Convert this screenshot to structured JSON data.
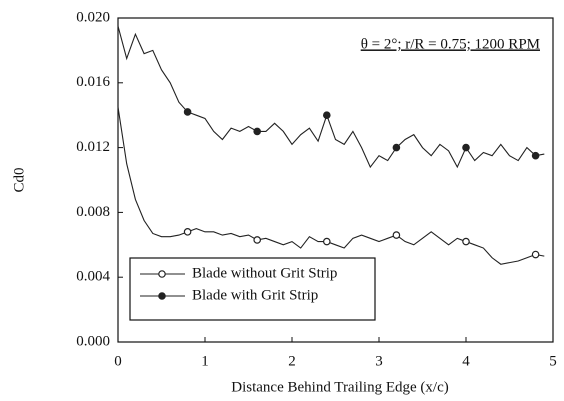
{
  "chart_data": {
    "type": "line",
    "xlabel": "Distance Behind Trailing Edge (x/c)",
    "ylabel": "Cd0",
    "annotation": "θ = 2°; r/R = 0.75; 1200 RPM",
    "xlim": [
      0,
      5
    ],
    "xticks": [
      0,
      1,
      2,
      3,
      4,
      5
    ],
    "ylim": [
      0,
      0.02
    ],
    "yticks": [
      {
        "value": 0,
        "label": "0.000"
      },
      0.004,
      0.008,
      0.012,
      0.016,
      {
        "value": 0.02,
        "label": "0.020"
      }
    ],
    "grid": false,
    "legend": "lower left",
    "x": [
      0,
      0.1,
      0.2,
      0.3,
      0.4,
      0.5,
      0.6,
      0.7,
      0.8,
      0.9,
      1.0,
      1.1,
      1.2,
      1.3,
      1.4,
      1.5,
      1.6,
      1.7,
      1.8,
      1.9,
      2.0,
      2.1,
      2.2,
      2.3,
      2.4,
      2.5,
      2.6,
      2.7,
      2.8,
      2.9,
      3.0,
      3.1,
      3.2,
      3.3,
      3.4,
      3.5,
      3.6,
      3.7,
      3.8,
      3.9,
      4.0,
      4.1,
      4.2,
      4.3,
      4.4,
      4.5,
      4.6,
      4.7,
      4.8,
      4.9
    ],
    "series": [
      {
        "name": "Blade without Grit Strip",
        "color": "#222222",
        "marker": "open-circle",
        "values": [
          0.0145,
          0.011,
          0.0088,
          0.0075,
          0.0067,
          0.0065,
          0.0065,
          0.0066,
          0.0068,
          0.007,
          0.0068,
          0.0068,
          0.0066,
          0.0067,
          0.0065,
          0.0066,
          0.0063,
          0.0064,
          0.0062,
          0.006,
          0.0062,
          0.0058,
          0.0065,
          0.0062,
          0.0062,
          0.006,
          0.0058,
          0.0064,
          0.0066,
          0.0064,
          0.0062,
          0.0064,
          0.0066,
          0.0062,
          0.006,
          0.0064,
          0.0068,
          0.0064,
          0.006,
          0.0064,
          0.0062,
          0.006,
          0.0058,
          0.0052,
          0.0048,
          0.0049,
          0.005,
          0.0052,
          0.0054,
          0.0053
        ]
      },
      {
        "name": "Blade with Grit Strip",
        "color": "#222222",
        "marker": "filled-circle",
        "values": [
          0.0195,
          0.0175,
          0.019,
          0.0178,
          0.018,
          0.0168,
          0.016,
          0.0148,
          0.0142,
          0.014,
          0.0138,
          0.013,
          0.0125,
          0.0132,
          0.013,
          0.0133,
          0.013,
          0.013,
          0.0135,
          0.013,
          0.0122,
          0.0128,
          0.0132,
          0.0124,
          0.014,
          0.0125,
          0.0122,
          0.013,
          0.012,
          0.0108,
          0.0115,
          0.0112,
          0.012,
          0.0125,
          0.0128,
          0.012,
          0.0115,
          0.0122,
          0.0118,
          0.0108,
          0.012,
          0.0112,
          0.0117,
          0.0115,
          0.0122,
          0.0115,
          0.0112,
          0.012,
          0.0115,
          0.0116
        ]
      }
    ]
  }
}
